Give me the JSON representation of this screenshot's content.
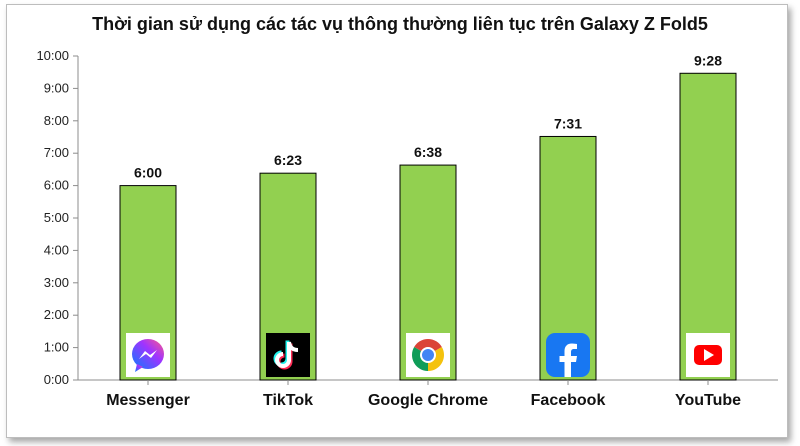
{
  "chart_data": {
    "type": "bar",
    "title": "Thời gian sử dụng các tác vụ thông thường liên tục trên Galaxy Z Fold5",
    "xlabel": "",
    "ylabel": "",
    "categories": [
      "Messenger",
      "TikTok",
      "Google Chrome",
      "Facebook",
      "YouTube"
    ],
    "values_minutes": [
      360,
      383,
      398,
      451,
      568
    ],
    "data_labels": [
      "6:00",
      "6:23",
      "6:38",
      "7:31",
      "9:28"
    ],
    "y_ticks": [
      "0:00",
      "1:00",
      "2:00",
      "3:00",
      "4:00",
      "5:00",
      "6:00",
      "7:00",
      "8:00",
      "9:00",
      "10:00"
    ],
    "ylim_minutes": [
      0,
      600
    ],
    "grid": false,
    "legend": "none",
    "icons": [
      "messenger-icon",
      "tiktok-icon",
      "chrome-icon",
      "facebook-icon",
      "youtube-icon"
    ],
    "colors": {
      "bar": "#92d050",
      "bar_border": "#000000"
    }
  }
}
